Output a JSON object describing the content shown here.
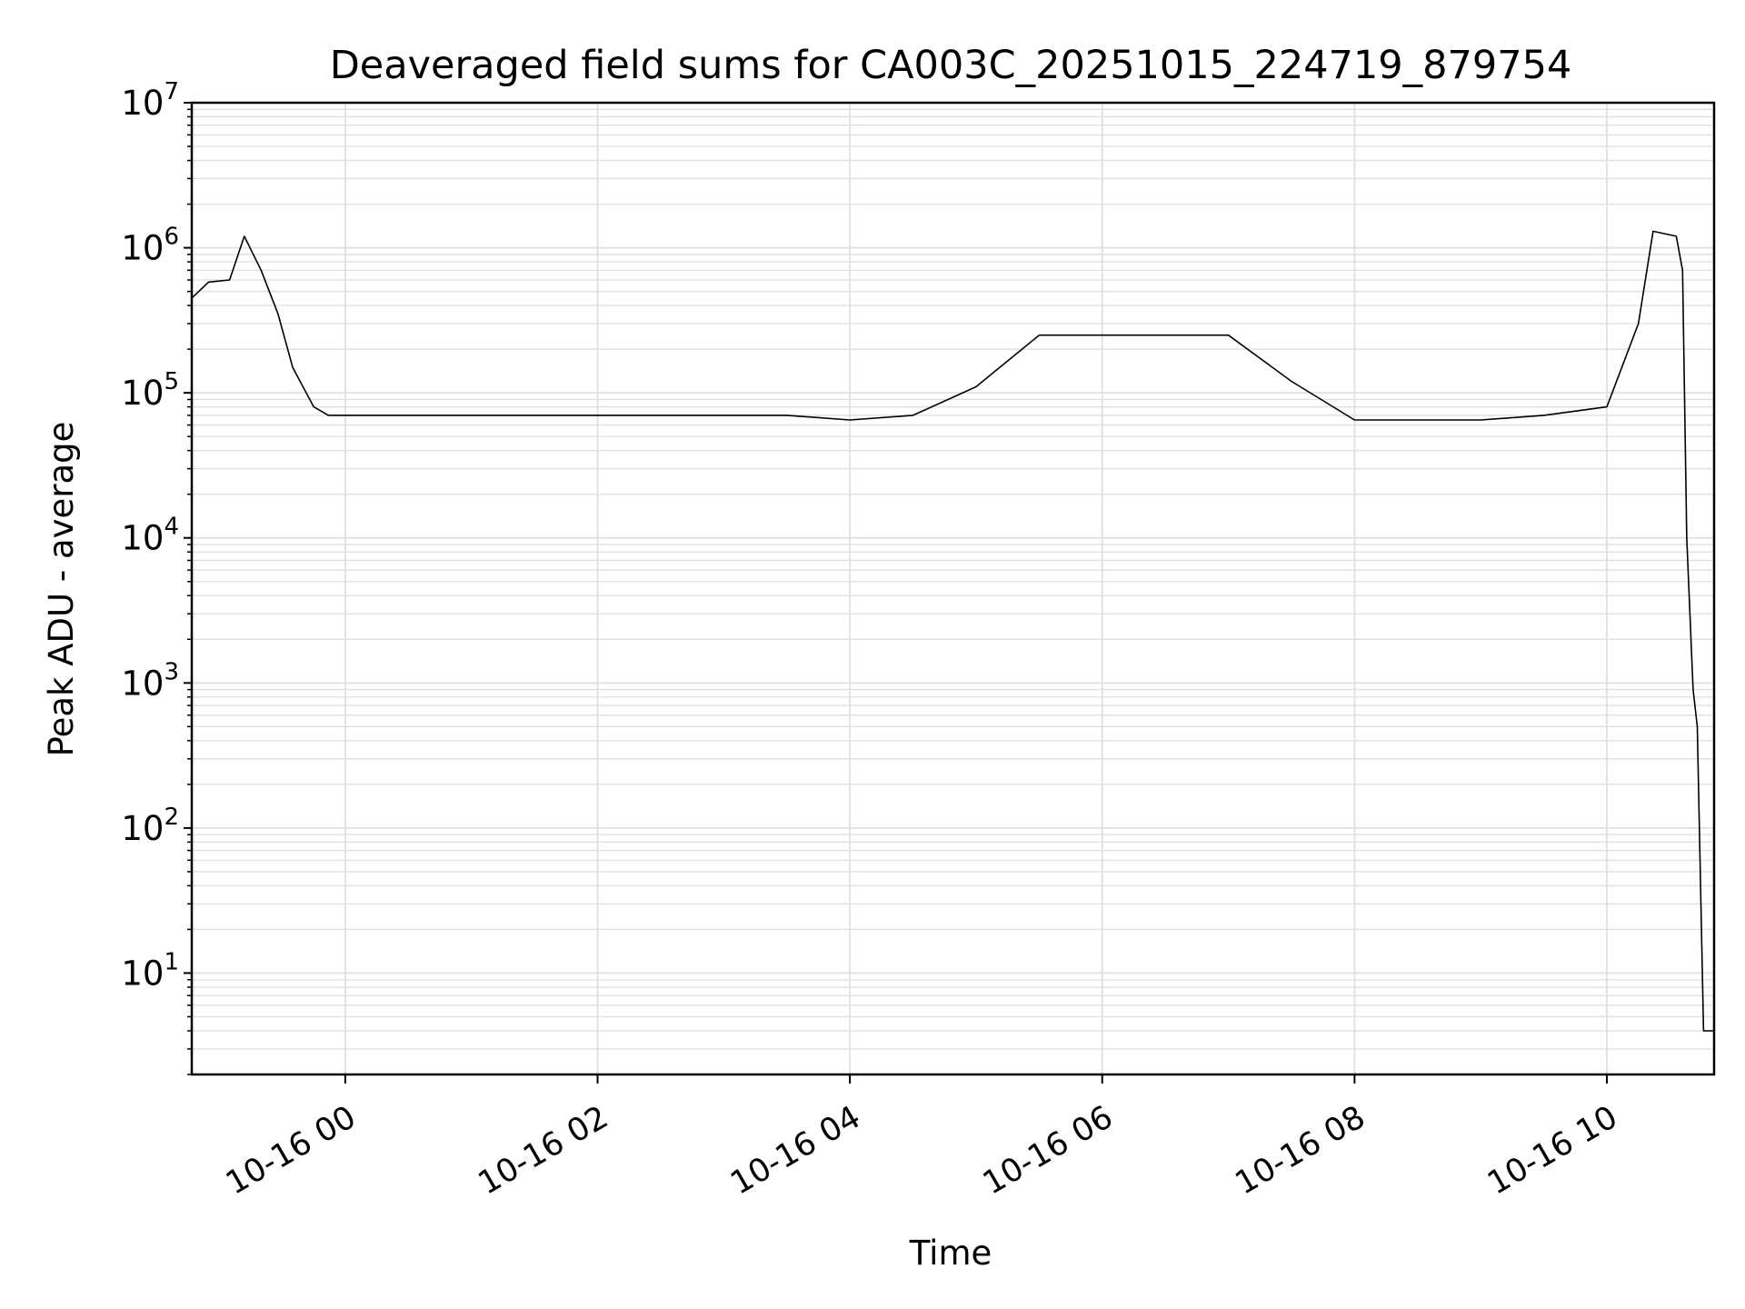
{
  "chart_data": {
    "type": "line",
    "title": "Deaveraged field sums for CA003C_20251015_224719_879754",
    "xlabel": "Time",
    "ylabel": "Peak ADU - average",
    "yscale": "log",
    "ylim": [
      2,
      10000000
    ],
    "xlim": [
      "2025-10-15 22:47",
      "2025-10-16 10:51"
    ],
    "grid": true,
    "legend": "none",
    "line_color": "#000000",
    "grid_color": "#e0e0e0",
    "x_ticks": [
      {
        "value": "2025-10-16 00:00",
        "label": "10-16 00"
      },
      {
        "value": "2025-10-16 02:00",
        "label": "10-16 02"
      },
      {
        "value": "2025-10-16 04:00",
        "label": "10-16 04"
      },
      {
        "value": "2025-10-16 06:00",
        "label": "10-16 06"
      },
      {
        "value": "2025-10-16 08:00",
        "label": "10-16 08"
      },
      {
        "value": "2025-10-16 10:00",
        "label": "10-16 10"
      }
    ],
    "y_ticks": [
      {
        "value": 10,
        "base": "10",
        "exp": "1"
      },
      {
        "value": 100,
        "base": "10",
        "exp": "2"
      },
      {
        "value": 1000,
        "base": "10",
        "exp": "3"
      },
      {
        "value": 10000,
        "base": "10",
        "exp": "4"
      },
      {
        "value": 100000,
        "base": "10",
        "exp": "5"
      },
      {
        "value": 1000000,
        "base": "10",
        "exp": "6"
      },
      {
        "value": 10000000,
        "base": "10",
        "exp": "7"
      }
    ],
    "series": [
      {
        "x": [
          "2025-10-15 22:47",
          "2025-10-15 22:55",
          "2025-10-15 23:05",
          "2025-10-15 23:12",
          "2025-10-15 23:20",
          "2025-10-15 23:28",
          "2025-10-15 23:35",
          "2025-10-15 23:45",
          "2025-10-15 23:52",
          "2025-10-16 00:00",
          "2025-10-16 00:30",
          "2025-10-16 01:00",
          "2025-10-16 01:30",
          "2025-10-16 02:00",
          "2025-10-16 02:30",
          "2025-10-16 03:00",
          "2025-10-16 03:30",
          "2025-10-16 04:00",
          "2025-10-16 04:30",
          "2025-10-16 05:00",
          "2025-10-16 05:30",
          "2025-10-16 06:00",
          "2025-10-16 06:30",
          "2025-10-16 07:00",
          "2025-10-16 07:30",
          "2025-10-16 08:00",
          "2025-10-16 08:30",
          "2025-10-16 09:00",
          "2025-10-16 09:30",
          "2025-10-16 10:00",
          "2025-10-16 10:15",
          "2025-10-16 10:22",
          "2025-10-16 10:33",
          "2025-10-16 10:36",
          "2025-10-16 10:38",
          "2025-10-16 10:41",
          "2025-10-16 10:43",
          "2025-10-16 10:44",
          "2025-10-16 10:46",
          "2025-10-16 10:48",
          "2025-10-16 10:49",
          "2025-10-16 10:51"
        ],
        "y": [
          450000,
          580000,
          600000,
          1200000,
          700000,
          350000,
          150000,
          80000,
          70000,
          70000,
          70000,
          70000,
          70000,
          70000,
          70000,
          70000,
          70000,
          65000,
          70000,
          110000,
          250000,
          250000,
          250000,
          250000,
          120000,
          65000,
          65000,
          65000,
          70000,
          80000,
          300000,
          1300000,
          1200000,
          700000,
          10000,
          900,
          500,
          100,
          4,
          4,
          4,
          4
        ]
      }
    ],
    "spikes_note_removed": true
  }
}
